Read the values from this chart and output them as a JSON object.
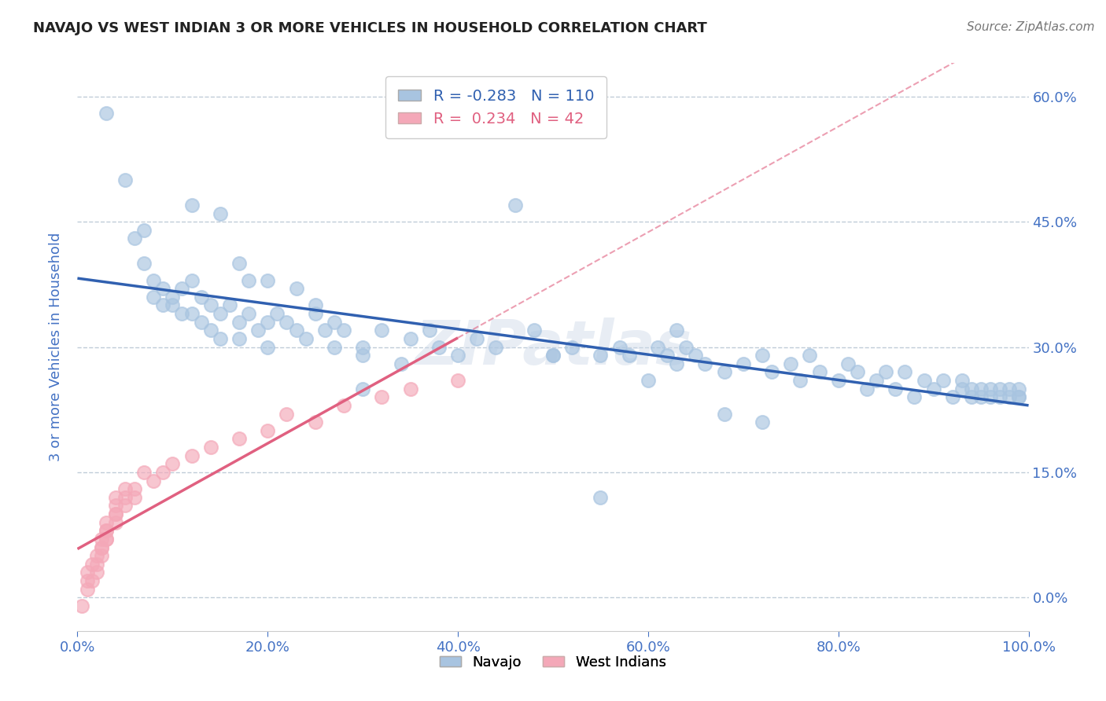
{
  "title": "NAVAJO VS WEST INDIAN 3 OR MORE VEHICLES IN HOUSEHOLD CORRELATION CHART",
  "source": "Source: ZipAtlas.com",
  "ylabel": "3 or more Vehicles in Household",
  "navajo_R": -0.283,
  "navajo_N": 110,
  "westindian_R": 0.234,
  "westindian_N": 42,
  "navajo_color": "#a8c4e0",
  "westindian_color": "#f4a8b8",
  "navajo_line_color": "#3060b0",
  "westindian_line_color": "#e06080",
  "background_color": "#ffffff",
  "watermark": "ZIPatlas",
  "navajo_x": [
    0.03,
    0.05,
    0.06,
    0.07,
    0.07,
    0.08,
    0.08,
    0.09,
    0.09,
    0.1,
    0.1,
    0.11,
    0.11,
    0.12,
    0.12,
    0.13,
    0.13,
    0.14,
    0.14,
    0.15,
    0.15,
    0.16,
    0.17,
    0.17,
    0.18,
    0.19,
    0.2,
    0.2,
    0.21,
    0.22,
    0.23,
    0.24,
    0.25,
    0.26,
    0.27,
    0.28,
    0.3,
    0.32,
    0.35,
    0.37,
    0.38,
    0.4,
    0.42,
    0.44,
    0.48,
    0.5,
    0.52,
    0.55,
    0.57,
    0.58,
    0.6,
    0.61,
    0.63,
    0.63,
    0.64,
    0.65,
    0.66,
    0.68,
    0.7,
    0.72,
    0.73,
    0.75,
    0.76,
    0.77,
    0.78,
    0.8,
    0.81,
    0.82,
    0.83,
    0.84,
    0.85,
    0.86,
    0.87,
    0.88,
    0.89,
    0.9,
    0.91,
    0.92,
    0.93,
    0.93,
    0.94,
    0.94,
    0.95,
    0.95,
    0.96,
    0.96,
    0.97,
    0.97,
    0.98,
    0.98,
    0.99,
    0.99,
    0.99,
    0.3,
    0.46,
    0.5,
    0.55,
    0.62,
    0.68,
    0.72,
    0.27,
    0.3,
    0.34,
    0.12,
    0.15,
    0.17,
    0.18,
    0.2,
    0.23,
    0.25
  ],
  "navajo_y": [
    0.58,
    0.5,
    0.43,
    0.44,
    0.4,
    0.38,
    0.36,
    0.37,
    0.35,
    0.36,
    0.35,
    0.37,
    0.34,
    0.38,
    0.34,
    0.36,
    0.33,
    0.35,
    0.32,
    0.34,
    0.31,
    0.35,
    0.33,
    0.31,
    0.34,
    0.32,
    0.33,
    0.3,
    0.34,
    0.33,
    0.32,
    0.31,
    0.34,
    0.32,
    0.3,
    0.32,
    0.29,
    0.32,
    0.31,
    0.32,
    0.3,
    0.29,
    0.31,
    0.3,
    0.32,
    0.29,
    0.3,
    0.29,
    0.3,
    0.29,
    0.26,
    0.3,
    0.32,
    0.28,
    0.3,
    0.29,
    0.28,
    0.27,
    0.28,
    0.29,
    0.27,
    0.28,
    0.26,
    0.29,
    0.27,
    0.26,
    0.28,
    0.27,
    0.25,
    0.26,
    0.27,
    0.25,
    0.27,
    0.24,
    0.26,
    0.25,
    0.26,
    0.24,
    0.25,
    0.26,
    0.24,
    0.25,
    0.24,
    0.25,
    0.24,
    0.25,
    0.24,
    0.25,
    0.24,
    0.25,
    0.24,
    0.25,
    0.24,
    0.25,
    0.47,
    0.29,
    0.12,
    0.29,
    0.22,
    0.21,
    0.33,
    0.3,
    0.28,
    0.47,
    0.46,
    0.4,
    0.38,
    0.38,
    0.37,
    0.35
  ],
  "westindian_x": [
    0.005,
    0.01,
    0.01,
    0.01,
    0.015,
    0.015,
    0.02,
    0.02,
    0.02,
    0.025,
    0.025,
    0.025,
    0.025,
    0.03,
    0.03,
    0.03,
    0.03,
    0.03,
    0.04,
    0.04,
    0.04,
    0.04,
    0.04,
    0.05,
    0.05,
    0.05,
    0.06,
    0.06,
    0.07,
    0.08,
    0.09,
    0.1,
    0.12,
    0.14,
    0.17,
    0.2,
    0.22,
    0.25,
    0.28,
    0.32,
    0.35,
    0.4
  ],
  "westindian_y": [
    -0.01,
    0.02,
    0.01,
    0.03,
    0.02,
    0.04,
    0.03,
    0.05,
    0.04,
    0.05,
    0.06,
    0.07,
    0.06,
    0.07,
    0.08,
    0.09,
    0.07,
    0.08,
    0.1,
    0.09,
    0.11,
    0.12,
    0.1,
    0.13,
    0.11,
    0.12,
    0.13,
    0.12,
    0.15,
    0.14,
    0.15,
    0.16,
    0.17,
    0.18,
    0.19,
    0.2,
    0.22,
    0.21,
    0.23,
    0.24,
    0.25,
    0.26
  ],
  "xlim": [
    0.0,
    1.0
  ],
  "ylim": [
    -0.04,
    0.64
  ],
  "legend_navajo": "Navajo",
  "legend_westindian": "West Indians",
  "title_color": "#222222",
  "source_color": "#777777",
  "tick_color": "#4472c4",
  "grid_color": "#d0dce8",
  "dashed_line_color": "#c0ccd8"
}
